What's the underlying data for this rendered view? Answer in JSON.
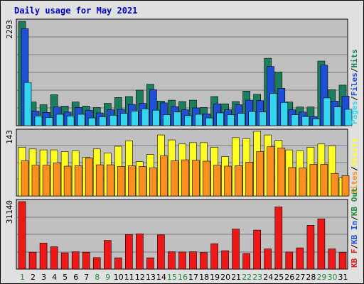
{
  "title": "Daily usage for May 2021",
  "colors": {
    "hits": "#1b7f5f",
    "files": "#1e4fd6",
    "pages": "#33d6ee",
    "visits": "#ffff22",
    "sites": "#ff8f1f",
    "kbytes": "#ee1818",
    "weekend": "#1b8f3f",
    "weekday": "#000000",
    "panel": "#c0c0c0",
    "legend_slash": "#000000"
  },
  "chart_data": [
    {
      "type": "bar",
      "name": "panel-hits-files-pages",
      "ylabel": "2293",
      "ylim": [
        0,
        2293
      ],
      "legend": [
        "Pages",
        "/",
        "Files",
        "/",
        "Hits"
      ],
      "categories": [
        "1",
        "2",
        "3",
        "4",
        "5",
        "6",
        "7",
        "8",
        "9",
        "10",
        "11",
        "12",
        "13",
        "14",
        "15",
        "16",
        "17",
        "18",
        "19",
        "20",
        "21",
        "22",
        "23",
        "24",
        "25",
        "26",
        "27",
        "28",
        "29",
        "30",
        "31"
      ],
      "series": [
        {
          "name": "Hits",
          "values": [
            2293,
            520,
            460,
            680,
            430,
            520,
            430,
            400,
            490,
            620,
            640,
            780,
            910,
            540,
            560,
            530,
            560,
            400,
            640,
            480,
            530,
            760,
            690,
            1480,
            1180,
            520,
            410,
            410,
            1420,
            790,
            890
          ]
        },
        {
          "name": "Files",
          "values": [
            2130,
            320,
            290,
            410,
            300,
            400,
            340,
            280,
            350,
            360,
            470,
            490,
            790,
            500,
            420,
            350,
            390,
            260,
            480,
            350,
            460,
            560,
            550,
            1300,
            820,
            350,
            300,
            200,
            1330,
            540,
            650
          ]
        },
        {
          "name": "Pages",
          "values": [
            950,
            210,
            180,
            250,
            210,
            250,
            170,
            190,
            230,
            270,
            320,
            370,
            340,
            240,
            300,
            220,
            250,
            170,
            280,
            240,
            270,
            310,
            300,
            710,
            510,
            240,
            200,
            150,
            610,
            410,
            360
          ]
        }
      ]
    },
    {
      "type": "bar",
      "name": "panel-visits-sites",
      "ylabel": "143",
      "ylim": [
        0,
        143
      ],
      "legend": [
        "Sites",
        "/",
        "Visits"
      ],
      "series": [
        {
          "name": "Visits",
          "values": [
            108,
            104,
            102,
            102,
            98,
            100,
            86,
            104,
            95,
            110,
            122,
            76,
            92,
            135,
            124,
            115,
            118,
            118,
            108,
            87,
            129,
            127,
            143,
            135,
            123,
            102,
            100,
            108,
            115,
            111,
            40
          ]
        },
        {
          "name": "Sites",
          "values": [
            78,
            68,
            68,
            73,
            66,
            67,
            84,
            69,
            69,
            65,
            67,
            65,
            62,
            89,
            78,
            80,
            79,
            77,
            68,
            66,
            67,
            75,
            98,
            109,
            106,
            63,
            62,
            70,
            70,
            50,
            45
          ]
        }
      ]
    },
    {
      "type": "bar",
      "name": "panel-kbytes",
      "ylabel": "31140",
      "ylim": [
        0,
        31140
      ],
      "legend": [
        "KB F",
        "/",
        "KB In",
        "/",
        "KB Out"
      ],
      "series": [
        {
          "name": "KB F",
          "values": [
            31140,
            7800,
            12000,
            10300,
            7500,
            8000,
            7800,
            5300,
            13200,
            5200,
            16000,
            16300,
            5200,
            15800,
            8000,
            7900,
            8000,
            7600,
            11700,
            8500,
            18500,
            7200,
            18000,
            9300,
            28700,
            7900,
            9800,
            20200,
            23200,
            9300,
            7700
          ]
        }
      ]
    }
  ],
  "days": [
    "1",
    "2",
    "3",
    "4",
    "5",
    "6",
    "7",
    "8",
    "9",
    "10",
    "11",
    "12",
    "13",
    "14",
    "15",
    "16",
    "17",
    "18",
    "19",
    "20",
    "21",
    "22",
    "23",
    "24",
    "25",
    "26",
    "27",
    "28",
    "29",
    "30",
    "31"
  ],
  "weekend_days": [
    1,
    8,
    9,
    15,
    16,
    22,
    23,
    29,
    30
  ]
}
